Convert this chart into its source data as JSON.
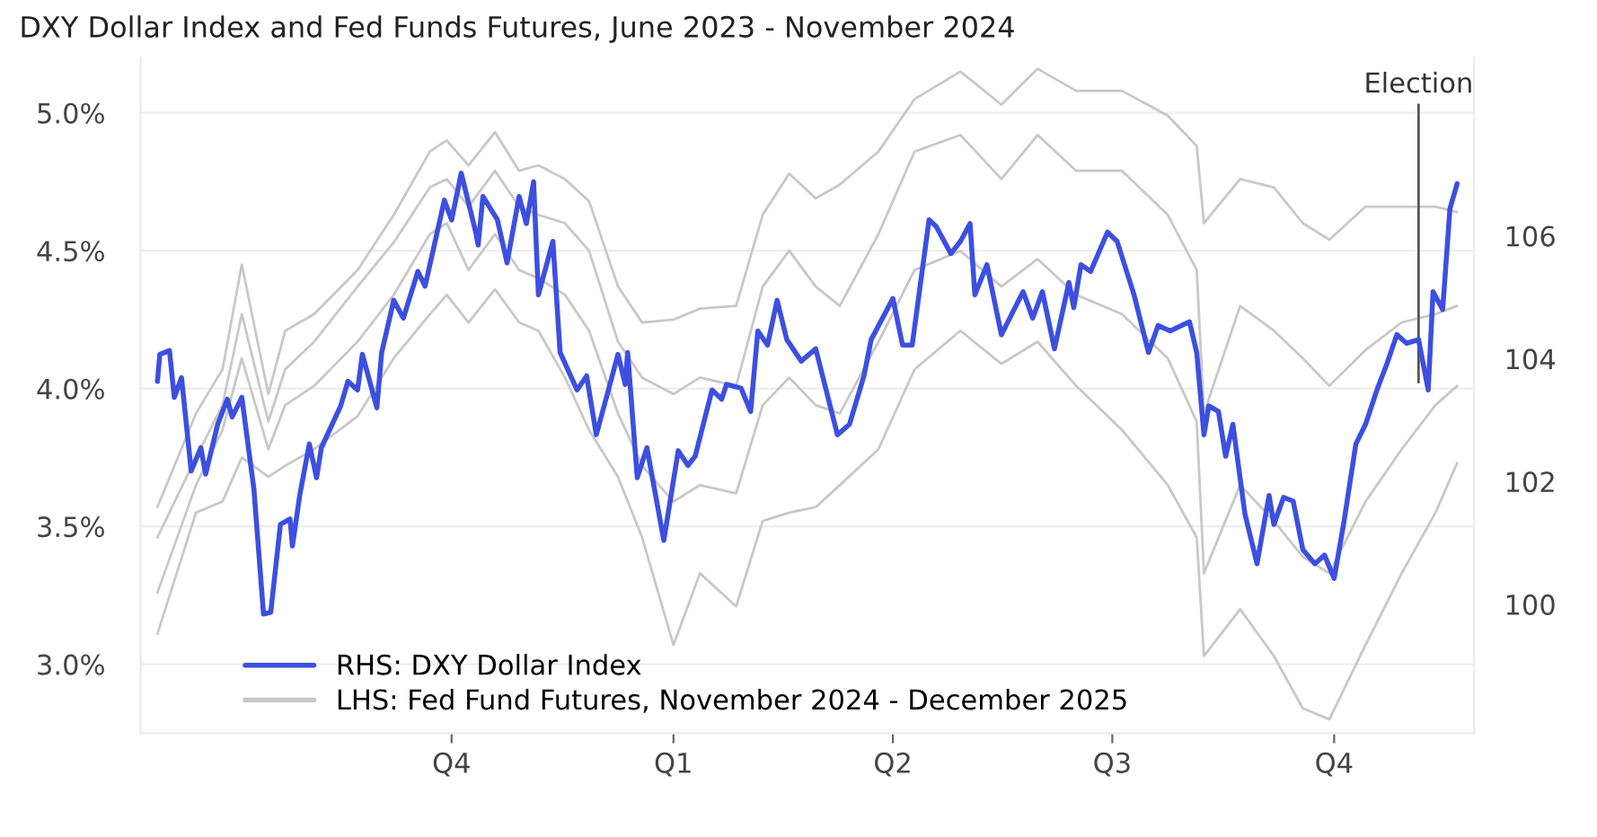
{
  "chart_data": {
    "type": "line",
    "title": "DXY Dollar Index and Fed Funds Futures, June 2023 - November 2024",
    "xlim": [
      "2023-05-25",
      "2024-11-28"
    ],
    "xticks": [
      {
        "value": "2023-10-01",
        "label": "Q4"
      },
      {
        "value": "2024-01-01",
        "label": "Q1"
      },
      {
        "value": "2024-04-01",
        "label": "Q2"
      },
      {
        "value": "2024-07-01",
        "label": "Q3"
      },
      {
        "value": "2024-10-01",
        "label": "Q4"
      }
    ],
    "ylim": [
      2.75,
      5.2
    ],
    "yticks": [
      {
        "value": 3.0,
        "label": "3.0%"
      },
      {
        "value": 3.5,
        "label": "3.5%"
      },
      {
        "value": 4.0,
        "label": "4.0%"
      },
      {
        "value": 4.5,
        "label": "4.5%"
      },
      {
        "value": 5.0,
        "label": "5.0%"
      }
    ],
    "y2lim": [
      97.9,
      108.9
    ],
    "y2ticks": [
      100,
      102,
      104,
      106
    ],
    "grid": "y",
    "legend": "bottom left",
    "line_style": "solid",
    "ref_lines": [
      {
        "axis": "x",
        "value": "2024-11-05",
        "label": "Election",
        "color": "#555555"
      }
    ],
    "x": [
      "2023-06-01",
      "2023-06-17",
      "2023-06-28",
      "2023-07-06",
      "2023-07-17",
      "2023-07-24",
      "2023-08-05",
      "2023-08-23",
      "2023-09-07",
      "2023-09-22",
      "2023-09-29",
      "2023-10-08",
      "2023-10-19",
      "2023-10-29",
      "2023-11-06",
      "2023-11-17",
      "2023-11-27",
      "2023-12-09",
      "2023-12-19",
      "2024-01-01",
      "2024-01-12",
      "2024-01-27",
      "2024-02-07",
      "2024-02-18",
      "2024-02-29",
      "2024-03-10",
      "2024-03-26",
      "2024-04-10",
      "2024-04-29",
      "2024-05-16",
      "2024-05-31",
      "2024-06-16",
      "2024-07-05",
      "2024-07-24",
      "2024-08-05",
      "2024-08-08",
      "2024-08-23",
      "2024-09-06",
      "2024-09-18",
      "2024-09-29",
      "2024-10-14",
      "2024-10-29",
      "2024-11-12",
      "2024-11-21"
    ],
    "series": [
      {
        "name": "RHS: DXY Dollar Index",
        "color": "#3d4fe0",
        "axis": "y2",
        "x": [
          "2023-06-01",
          "2023-06-02",
          "2023-06-06",
          "2023-06-08",
          "2023-06-11",
          "2023-06-15",
          "2023-06-19",
          "2023-06-21",
          "2023-06-26",
          "2023-06-30",
          "2023-07-02",
          "2023-07-06",
          "2023-07-11",
          "2023-07-15",
          "2023-07-18",
          "2023-07-22",
          "2023-07-26",
          "2023-07-27",
          "2023-07-30",
          "2023-08-03",
          "2023-08-06",
          "2023-08-08",
          "2023-08-16",
          "2023-08-19",
          "2023-08-23",
          "2023-08-25",
          "2023-08-31",
          "2023-09-02",
          "2023-09-07",
          "2023-09-11",
          "2023-09-17",
          "2023-09-20",
          "2023-09-28",
          "2023-10-01",
          "2023-10-05",
          "2023-10-11",
          "2023-10-12",
          "2023-10-14",
          "2023-10-20",
          "2023-10-24",
          "2023-10-29",
          "2023-11-01",
          "2023-11-04",
          "2023-11-06",
          "2023-11-12",
          "2023-11-15",
          "2023-11-22",
          "2023-11-26",
          "2023-11-30",
          "2023-12-06",
          "2023-12-09",
          "2023-12-12",
          "2023-12-13",
          "2023-12-17",
          "2023-12-21",
          "2023-12-28",
          "2024-01-03",
          "2024-01-07",
          "2024-01-10",
          "2024-01-17",
          "2024-01-21",
          "2024-01-23",
          "2024-01-29",
          "2024-02-02",
          "2024-02-05",
          "2024-02-09",
          "2024-02-13",
          "2024-02-17",
          "2024-02-23",
          "2024-02-29",
          "2024-03-09",
          "2024-03-14",
          "2024-03-20",
          "2024-03-23",
          "2024-04-01",
          "2024-04-05",
          "2024-04-09",
          "2024-04-16",
          "2024-04-19",
          "2024-04-25",
          "2024-04-29",
          "2024-05-03",
          "2024-05-05",
          "2024-05-10",
          "2024-05-16",
          "2024-05-25",
          "2024-05-29",
          "2024-06-02",
          "2024-06-07",
          "2024-06-13",
          "2024-06-15",
          "2024-06-18",
          "2024-06-22",
          "2024-06-29",
          "2024-07-03",
          "2024-07-10",
          "2024-07-16",
          "2024-07-20",
          "2024-07-25",
          "2024-08-02",
          "2024-08-05",
          "2024-08-08",
          "2024-08-10",
          "2024-08-14",
          "2024-08-17",
          "2024-08-20",
          "2024-08-25",
          "2024-08-30",
          "2024-09-04",
          "2024-09-06",
          "2024-09-10",
          "2024-09-14",
          "2024-09-18",
          "2024-09-23",
          "2024-09-27",
          "2024-10-01",
          "2024-10-05",
          "2024-10-10",
          "2024-10-14",
          "2024-10-19",
          "2024-10-23",
          "2024-10-27",
          "2024-10-31",
          "2024-11-05",
          "2024-11-09",
          "2024-11-11",
          "2024-11-15",
          "2024-11-18",
          "2024-11-21"
        ],
        "values": [
          103.63,
          104.07,
          104.13,
          103.37,
          103.69,
          102.17,
          102.55,
          102.12,
          102.93,
          103.34,
          103.05,
          103.37,
          101.88,
          99.84,
          99.87,
          101.3,
          101.39,
          100.95,
          101.77,
          102.61,
          102.06,
          102.55,
          103.23,
          103.63,
          103.49,
          104.07,
          103.2,
          104.1,
          104.95,
          104.66,
          105.42,
          105.18,
          106.58,
          106.26,
          107.02,
          106.06,
          105.85,
          106.64,
          106.26,
          105.56,
          106.64,
          106.2,
          106.88,
          105.04,
          105.91,
          104.1,
          103.49,
          103.72,
          102.76,
          103.63,
          104.07,
          103.58,
          104.1,
          102.06,
          102.55,
          101.04,
          102.5,
          102.26,
          102.41,
          103.49,
          103.34,
          103.58,
          103.52,
          103.14,
          104.45,
          104.22,
          104.95,
          104.31,
          103.96,
          104.16,
          102.76,
          102.93,
          103.72,
          104.31,
          104.98,
          104.22,
          104.22,
          106.26,
          106.15,
          105.71,
          105.91,
          106.2,
          105.04,
          105.53,
          104.39,
          105.09,
          104.66,
          105.09,
          104.16,
          105.24,
          104.83,
          105.53,
          105.42,
          106.06,
          105.91,
          105.04,
          104.1,
          104.54,
          104.45,
          104.6,
          104.1,
          102.76,
          103.23,
          103.14,
          102.41,
          102.93,
          101.47,
          100.66,
          101.77,
          101.3,
          101.74,
          101.68,
          100.89,
          100.66,
          100.8,
          100.42,
          101.33,
          102.61,
          102.93,
          103.52,
          103.93,
          104.39,
          104.25,
          104.31,
          103.49,
          105.09,
          104.8,
          106.44,
          106.85
        ]
      },
      {
        "name": "LHS: Fed Fund Futures, November 2024 - December 2025",
        "color": "#c8c8c8",
        "values": [
          3.57,
          3.91,
          4.07,
          4.45,
          3.98,
          4.21,
          4.27,
          4.43,
          4.63,
          4.86,
          4.9,
          4.81,
          4.93,
          4.79,
          4.81,
          4.76,
          4.68,
          4.37,
          4.24,
          4.25,
          4.29,
          4.3,
          4.63,
          4.78,
          4.69,
          4.74,
          4.86,
          5.05,
          5.15,
          5.03,
          5.16,
          5.08,
          5.08,
          4.99,
          4.88,
          4.6,
          4.76,
          4.73,
          4.6,
          4.54,
          4.66,
          4.66,
          4.66,
          4.64
        ]
      },
      {
        "color": "#c8c8c8",
        "values": [
          3.46,
          3.75,
          3.94,
          4.27,
          3.88,
          4.07,
          4.17,
          4.37,
          4.53,
          4.73,
          4.76,
          4.66,
          4.79,
          4.66,
          4.63,
          4.6,
          4.5,
          4.17,
          4.04,
          3.98,
          4.04,
          4.01,
          4.37,
          4.5,
          4.37,
          4.3,
          4.56,
          4.86,
          4.92,
          4.76,
          4.92,
          4.79,
          4.79,
          4.63,
          4.43,
          3.91,
          4.3,
          4.21,
          4.11,
          4.01,
          4.14,
          4.24,
          4.27,
          4.3
        ]
      },
      {
        "color": "#c8c8c8",
        "values": [
          3.26,
          3.65,
          3.85,
          4.11,
          3.78,
          3.94,
          4.01,
          4.17,
          4.34,
          4.56,
          4.6,
          4.43,
          4.56,
          4.43,
          4.4,
          4.34,
          4.21,
          3.91,
          3.72,
          3.59,
          3.65,
          3.62,
          3.94,
          4.04,
          3.94,
          3.91,
          4.17,
          4.43,
          4.5,
          4.37,
          4.47,
          4.34,
          4.27,
          4.11,
          3.88,
          3.33,
          3.65,
          3.52,
          3.39,
          3.33,
          3.59,
          3.78,
          3.94,
          4.01
        ]
      },
      {
        "color": "#c8c8c8",
        "values": [
          3.11,
          3.55,
          3.59,
          3.75,
          3.68,
          3.72,
          3.78,
          3.9,
          4.11,
          4.27,
          4.34,
          4.24,
          4.36,
          4.24,
          4.21,
          4.04,
          3.85,
          3.68,
          3.46,
          3.07,
          3.33,
          3.21,
          3.52,
          3.55,
          3.57,
          3.65,
          3.78,
          4.07,
          4.21,
          4.09,
          4.17,
          4.01,
          3.85,
          3.65,
          3.46,
          3.03,
          3.2,
          3.03,
          2.84,
          2.8,
          3.07,
          3.33,
          3.55,
          3.73
        ]
      }
    ]
  }
}
